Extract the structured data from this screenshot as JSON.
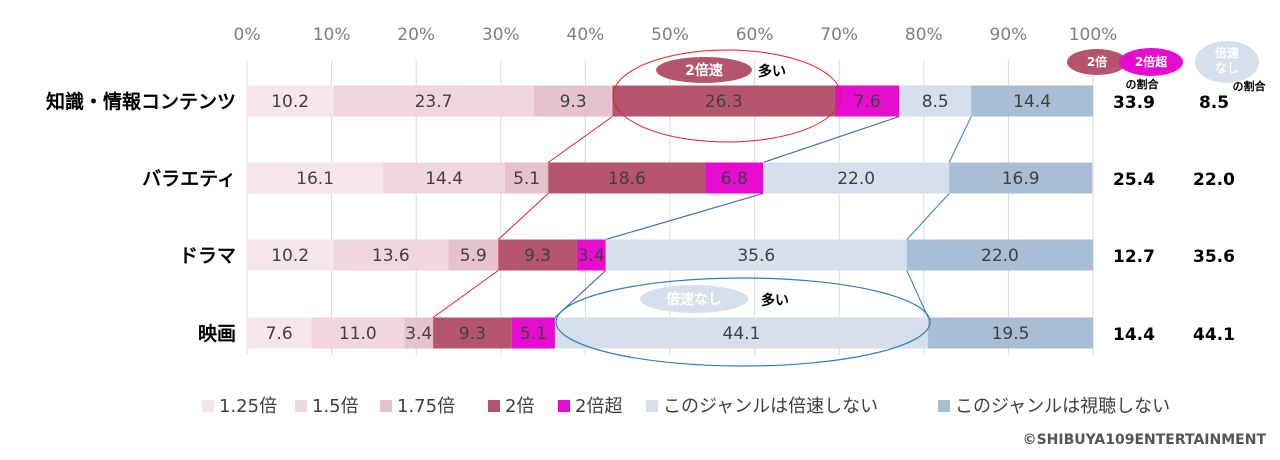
{
  "chart_data": {
    "type": "bar",
    "stacked": true,
    "orientation": "horizontal",
    "xlim": [
      0,
      100
    ],
    "x_ticks": [
      "0%",
      "10%",
      "20%",
      "30%",
      "40%",
      "50%",
      "60%",
      "70%",
      "80%",
      "90%",
      "100%"
    ],
    "categories": [
      "知識・情報コンテンツ",
      "バラエティ",
      "ドラマ",
      "映画"
    ],
    "series": [
      {
        "name": "1.25倍",
        "color": "#f6e6ec",
        "values": [
          10.2,
          16.1,
          10.2,
          7.6
        ]
      },
      {
        "name": "1.5倍",
        "color": "#efd6df",
        "values": [
          23.7,
          14.4,
          13.6,
          11.0
        ]
      },
      {
        "name": "1.75倍",
        "color": "#e5c2ce",
        "values": [
          9.3,
          5.1,
          5.9,
          3.4
        ]
      },
      {
        "name": "2倍",
        "color": "#b5546f",
        "values": [
          26.3,
          18.6,
          9.3,
          9.3
        ]
      },
      {
        "name": "2倍超",
        "color": "#e60ccf",
        "values": [
          7.6,
          6.8,
          3.4,
          5.1
        ]
      },
      {
        "name": "このジャンルは倍速しない",
        "color": "#d6dfec",
        "values": [
          8.5,
          22.0,
          35.6,
          44.1
        ]
      },
      {
        "name": "このジャンルは視聴しない",
        "color": "#a9bdd4",
        "values": [
          14.4,
          16.9,
          22.0,
          19.5
        ]
      }
    ],
    "summary_columns": {
      "double_or_more": {
        "badge_left": "2倍",
        "amp": "&",
        "badge_right": "2倍超",
        "caption": "の割合",
        "values": [
          "33.9",
          "25.4",
          "12.7",
          "14.4"
        ]
      },
      "no_speed": {
        "badge_line1": "倍速",
        "badge_line2": "なし",
        "caption": "の割合",
        "values": [
          "8.5",
          "22.0",
          "35.6",
          "44.1"
        ]
      }
    },
    "annotations": {
      "double_badge": "2倍速",
      "double_suffix": "多い",
      "nospeed_badge": "倍速なし",
      "nospeed_suffix": "多い"
    },
    "legend_position": "bottom",
    "grid": true
  },
  "copyright": "©SHIBUYA109ENTERTAINMENT"
}
